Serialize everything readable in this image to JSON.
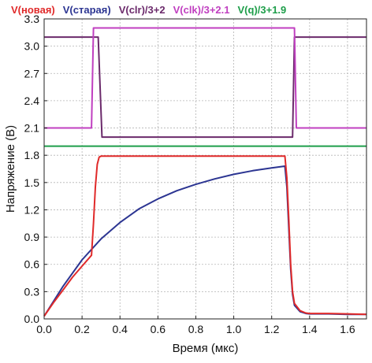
{
  "chart_data": {
    "type": "line",
    "xlabel": "Время (мкс)",
    "ylabel": "Напряжение (В)",
    "xlim": [
      0,
      1.7
    ],
    "ylim": [
      0,
      3.3
    ],
    "grid": true,
    "legend_position": "top",
    "x_ticks": [
      0.0,
      0.2,
      0.4,
      0.6,
      0.8,
      1.0,
      1.2,
      1.4,
      1.6
    ],
    "x_tick_labels": [
      "0.0",
      "0.2",
      "0.4",
      "0.6",
      "0.8",
      "1.0",
      "1.2",
      "1.4",
      "1.6"
    ],
    "y_ticks": [
      0,
      0.3,
      0.6,
      0.9,
      1.2,
      1.5,
      1.8,
      2.1,
      2.4,
      2.7,
      3.0,
      3.3
    ],
    "y_tick_labels": [
      "0.0",
      "0.3",
      "0.6",
      "0.9",
      "1.2",
      "1.5",
      "1.8",
      "2.1",
      "2.4",
      "2.7",
      "3.0",
      "3.3"
    ],
    "series": [
      {
        "name": "V(новая)",
        "color": "#e02a2a",
        "x": [
          0.0,
          0.05,
          0.1,
          0.15,
          0.2,
          0.25,
          0.26,
          0.27,
          0.28,
          0.29,
          0.3,
          0.32,
          0.5,
          1.0,
          1.27,
          1.28,
          1.29,
          1.3,
          1.31,
          1.32,
          1.35,
          1.38,
          1.4,
          1.5,
          1.6,
          1.7
        ],
        "values": [
          0.03,
          0.18,
          0.32,
          0.46,
          0.58,
          0.7,
          1.05,
          1.45,
          1.7,
          1.78,
          1.79,
          1.79,
          1.79,
          1.79,
          1.79,
          1.55,
          1.1,
          0.6,
          0.3,
          0.17,
          0.09,
          0.065,
          0.06,
          0.06,
          0.055,
          0.05
        ]
      },
      {
        "name": "V(старая)",
        "color": "#2c3592",
        "x": [
          0.0,
          0.1,
          0.2,
          0.3,
          0.4,
          0.5,
          0.6,
          0.7,
          0.8,
          0.9,
          1.0,
          1.1,
          1.2,
          1.27,
          1.28,
          1.29,
          1.3,
          1.31,
          1.32,
          1.35,
          1.38,
          1.4,
          1.5,
          1.6,
          1.7
        ],
        "values": [
          0.03,
          0.36,
          0.65,
          0.88,
          1.06,
          1.21,
          1.32,
          1.41,
          1.48,
          1.54,
          1.59,
          1.63,
          1.66,
          1.68,
          1.45,
          1.0,
          0.55,
          0.27,
          0.15,
          0.08,
          0.06,
          0.055,
          0.055,
          0.05,
          0.05
        ]
      },
      {
        "name": "V(clr)/3+2",
        "color": "#6b2a6b",
        "x": [
          0.0,
          0.285,
          0.305,
          1.31,
          1.32,
          1.7
        ],
        "values": [
          3.1,
          3.1,
          2.0,
          2.0,
          3.1,
          3.1
        ]
      },
      {
        "name": "V(clk)/3+2.1",
        "color": "#c03fc0",
        "x": [
          0.0,
          0.25,
          0.26,
          1.32,
          1.33,
          1.7
        ],
        "values": [
          2.1,
          2.1,
          3.2,
          3.2,
          2.1,
          2.1
        ]
      },
      {
        "name": "V(q)/3+1.9",
        "color": "#1e9e4a",
        "x": [
          0.0,
          0.25,
          0.26,
          1.7
        ],
        "values": [
          1.9,
          1.9,
          1.9,
          1.9
        ]
      }
    ]
  }
}
